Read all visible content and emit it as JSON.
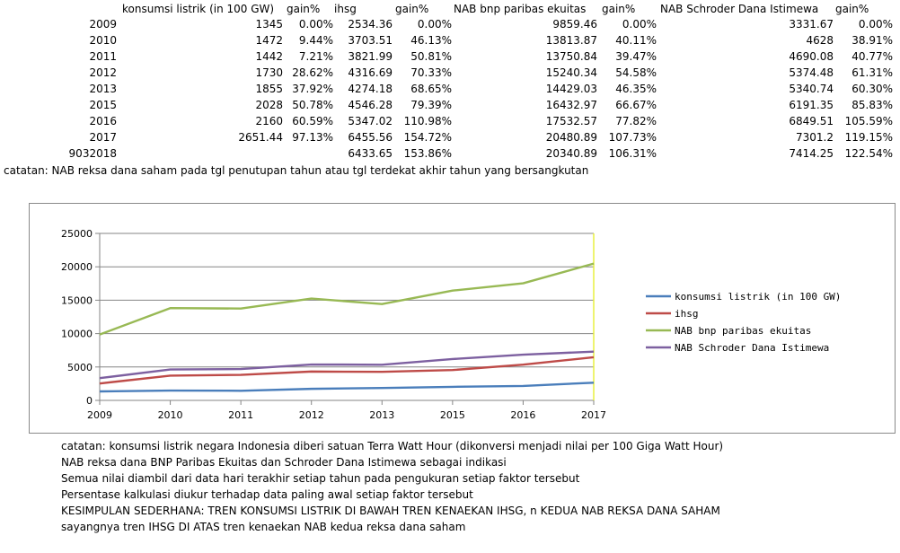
{
  "table": {
    "headers": [
      "konsumsi listrik (in 100 GW)",
      "gain%",
      "ihsg",
      "gain%",
      "NAB bnp paribas ekuitas",
      "gain%",
      "NAB Schroder Dana Istimewa",
      "gain%"
    ],
    "rows": [
      [
        "2009",
        "1345",
        "0.00%",
        "2534.36",
        "0.00%",
        "9859.46",
        "0.00%",
        "3331.67",
        "0.00%"
      ],
      [
        "2010",
        "1472",
        "9.44%",
        "3703.51",
        "46.13%",
        "13813.87",
        "40.11%",
        "4628",
        "38.91%"
      ],
      [
        "2011",
        "1442",
        "7.21%",
        "3821.99",
        "50.81%",
        "13750.84",
        "39.47%",
        "4690.08",
        "40.77%"
      ],
      [
        "2012",
        "1730",
        "28.62%",
        "4316.69",
        "70.33%",
        "15240.34",
        "54.58%",
        "5374.48",
        "61.31%"
      ],
      [
        "2013",
        "1855",
        "37.92%",
        "4274.18",
        "68.65%",
        "14429.03",
        "46.35%",
        "5340.74",
        "60.30%"
      ],
      [
        "2015",
        "2028",
        "50.78%",
        "4546.28",
        "79.39%",
        "16432.97",
        "66.67%",
        "6191.35",
        "85.83%"
      ],
      [
        "2016",
        "2160",
        "60.59%",
        "5347.02",
        "110.98%",
        "17532.57",
        "77.82%",
        "6849.51",
        "105.59%"
      ],
      [
        "2017",
        "2651.44",
        "97.13%",
        "6455.56",
        "154.72%",
        "20480.89",
        "107.73%",
        "7301.2",
        "119.15%"
      ],
      [
        "9032018",
        "",
        "",
        "6433.65",
        "153.86%",
        "20340.89",
        "106.31%",
        "7414.25",
        "122.54%"
      ]
    ],
    "note": "catatan: NAB reksa dana saham pada tgl penutupan tahun atau tgl terdekat akhir tahun yang bersangkutan"
  },
  "chart_data": {
    "type": "line",
    "categories": [
      "2009",
      "2010",
      "2011",
      "2012",
      "2013",
      "2015",
      "2016",
      "2017"
    ],
    "yticks": [
      "0",
      "5000",
      "10000",
      "15000",
      "20000",
      "25000"
    ],
    "ylim": [
      0,
      25000
    ],
    "grid": true,
    "legend": "right",
    "series": [
      {
        "name": "konsumsi listrik (in 100 GW)",
        "color": "#4a7ebb",
        "values": [
          1345,
          1472,
          1442,
          1730,
          1855,
          2028,
          2160,
          2651.44
        ]
      },
      {
        "name": "ihsg",
        "color": "#be4b48",
        "values": [
          2534.36,
          3703.51,
          3821.99,
          4316.69,
          4274.18,
          4546.28,
          5347.02,
          6455.56
        ]
      },
      {
        "name": "NAB bnp paribas ekuitas",
        "color": "#98b954",
        "values": [
          9859.46,
          13813.87,
          13750.84,
          15240.34,
          14429.03,
          16432.97,
          17532.57,
          20480.89
        ]
      },
      {
        "name": "NAB Schroder Dana Istimewa",
        "color": "#7d60a0",
        "values": [
          3331.67,
          4628,
          4690.08,
          5374.48,
          5340.74,
          6191.35,
          6849.51,
          7301.2
        ]
      }
    ]
  },
  "bottom_notes": [
    "catatan: konsumsi listrik negara Indonesia diberi satuan Terra Watt Hour (dikonversi menjadi nilai per 100 Giga Watt Hour)",
    "NAB reksa dana BNP Paribas Ekuitas dan Schroder Dana Istimewa sebagai indikasi",
    "Semua nilai diambil dari data hari terakhir setiap tahun pada pengukuran setiap faktor tersebut",
    "Persentase kalkulasi diukur terhadap data paling awal setiap faktor tersebut",
    "KESIMPULAN SEDERHANA: TREN KONSUMSI LISTRIK DI BAWAH TREN KENAEKAN IHSG, n KEDUA NAB REKSA DANA SAHAM",
    "sayangnya tren IHSG DI ATAS tren kenaekan NAB kedua reksa dana saham"
  ]
}
